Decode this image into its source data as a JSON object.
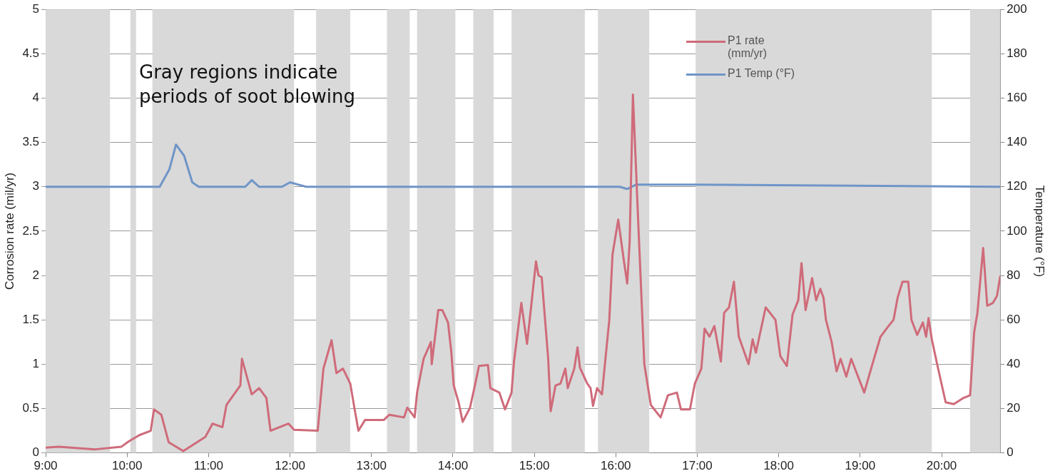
{
  "chart_data": {
    "type": "line",
    "xlim": [
      9,
      20.72
    ],
    "xticks": [
      {
        "value": 9,
        "label": "9:00"
      },
      {
        "value": 10,
        "label": "10:00"
      },
      {
        "value": 11,
        "label": "11:00"
      },
      {
        "value": 12,
        "label": "12:00"
      },
      {
        "value": 13,
        "label": "13:00"
      },
      {
        "value": 14,
        "label": "14:00"
      },
      {
        "value": 15,
        "label": "15:00"
      },
      {
        "value": 16,
        "label": "16:00"
      },
      {
        "value": 17,
        "label": "17:00"
      },
      {
        "value": 18,
        "label": "18:00"
      },
      {
        "value": 19,
        "label": "19:00"
      },
      {
        "value": 20,
        "label": "20:00"
      }
    ],
    "ylim": [
      0,
      5
    ],
    "yticks": [
      0,
      0.5,
      1,
      1.5,
      2,
      2.5,
      3,
      3.5,
      4,
      4.5,
      5
    ],
    "y2lim": [
      0,
      200
    ],
    "y2ticks": [
      0,
      20,
      40,
      60,
      80,
      100,
      120,
      140,
      160,
      180,
      200
    ],
    "ylabel": "Corrosion rate (mil/yr)",
    "y2label": "Temperature (°F)",
    "grid": "y",
    "legend": "top right",
    "marker": "none",
    "line_style": "solid",
    "annotations": [
      "Gray regions indicate periods of soot blowing"
    ],
    "bands": [
      {
        "axis": "x",
        "from": 9.0,
        "to": 9.79,
        "color": "#d9d9d9"
      },
      {
        "axis": "x",
        "from": 10.04,
        "to": 10.11,
        "color": "#d9d9d9"
      },
      {
        "axis": "x",
        "from": 10.31,
        "to": 12.05,
        "color": "#d9d9d9"
      },
      {
        "axis": "x",
        "from": 12.32,
        "to": 12.74,
        "color": "#d9d9d9"
      },
      {
        "axis": "x",
        "from": 13.19,
        "to": 13.47,
        "color": "#d9d9d9"
      },
      {
        "axis": "x",
        "from": 13.56,
        "to": 14.03,
        "color": "#d9d9d9"
      },
      {
        "axis": "x",
        "from": 14.25,
        "to": 14.5,
        "color": "#d9d9d9"
      },
      {
        "axis": "x",
        "from": 14.72,
        "to": 15.62,
        "color": "#d9d9d9"
      },
      {
        "axis": "x",
        "from": 15.78,
        "to": 16.41,
        "color": "#d9d9d9"
      },
      {
        "axis": "x",
        "from": 16.98,
        "to": 19.88,
        "color": "#d9d9d9"
      },
      {
        "axis": "x",
        "from": 20.35,
        "to": 20.72,
        "color": "#d9d9d9"
      }
    ],
    "series": [
      {
        "name": "P1 rate (mm/yr)",
        "color": "#cf6b7a",
        "x": [
          9.0,
          9.16,
          9.61,
          9.93,
          10.02,
          10.15,
          10.29,
          10.33,
          10.42,
          10.51,
          10.69,
          10.96,
          11.05,
          11.17,
          11.22,
          11.39,
          11.41,
          11.53,
          11.62,
          11.71,
          11.76,
          11.98,
          12.05,
          12.34,
          12.41,
          12.51,
          12.57,
          12.65,
          12.74,
          12.79,
          12.84,
          12.92,
          13.15,
          13.22,
          13.4,
          13.44,
          13.53,
          13.56,
          13.64,
          13.73,
          13.74,
          13.82,
          13.87,
          13.94,
          13.98,
          14.01,
          14.07,
          14.12,
          14.21,
          14.27,
          14.32,
          14.43,
          14.46,
          14.57,
          14.64,
          14.72,
          14.75,
          14.84,
          14.86,
          14.91,
          14.95,
          15.02,
          15.05,
          15.09,
          15.17,
          15.2,
          15.26,
          15.32,
          15.38,
          15.41,
          15.49,
          15.53,
          15.56,
          15.65,
          15.69,
          15.72,
          15.77,
          15.83,
          15.92,
          15.96,
          16.03,
          16.1,
          16.14,
          16.17,
          16.21,
          16.28,
          16.35,
          16.43,
          16.55,
          16.64,
          16.75,
          16.8,
          16.91,
          16.97,
          17.05,
          17.09,
          17.15,
          17.21,
          17.29,
          17.33,
          17.39,
          17.45,
          17.51,
          17.63,
          17.68,
          17.72,
          17.84,
          17.96,
          18.02,
          18.1,
          18.17,
          18.24,
          18.28,
          18.33,
          18.41,
          18.46,
          18.51,
          18.55,
          18.58,
          18.65,
          18.71,
          18.76,
          18.83,
          18.89,
          19.05,
          19.16,
          19.25,
          19.34,
          19.41,
          19.46,
          19.52,
          19.59,
          19.63,
          19.7,
          19.77,
          19.81,
          19.84,
          19.88,
          19.95,
          20.05,
          20.15,
          20.27,
          20.35,
          20.4,
          20.44,
          20.51,
          20.56,
          20.63,
          20.68,
          20.72
        ],
        "values": [
          0.06,
          0.07,
          0.04,
          0.07,
          0.13,
          0.2,
          0.25,
          0.49,
          0.43,
          0.12,
          0.02,
          0.18,
          0.33,
          0.29,
          0.54,
          0.76,
          1.06,
          0.66,
          0.73,
          0.62,
          0.25,
          0.33,
          0.26,
          0.25,
          0.95,
          1.27,
          0.9,
          0.95,
          0.78,
          0.51,
          0.25,
          0.37,
          0.37,
          0.43,
          0.4,
          0.51,
          0.4,
          0.68,
          1.06,
          1.25,
          1.0,
          1.61,
          1.61,
          1.47,
          1.14,
          0.76,
          0.57,
          0.35,
          0.51,
          0.76,
          0.98,
          0.99,
          0.73,
          0.68,
          0.49,
          0.68,
          1.03,
          1.69,
          1.56,
          1.23,
          1.56,
          2.16,
          2.0,
          1.98,
          1.06,
          0.47,
          0.76,
          0.78,
          0.95,
          0.73,
          0.95,
          1.19,
          0.96,
          0.78,
          0.73,
          0.53,
          0.73,
          0.66,
          1.5,
          2.24,
          2.63,
          2.16,
          1.91,
          2.38,
          4.04,
          2.5,
          1.0,
          0.54,
          0.4,
          0.65,
          0.68,
          0.49,
          0.49,
          0.78,
          0.95,
          1.4,
          1.31,
          1.43,
          1.03,
          1.58,
          1.64,
          1.93,
          1.31,
          1.0,
          1.28,
          1.13,
          1.64,
          1.5,
          1.09,
          0.98,
          1.56,
          1.72,
          2.14,
          1.61,
          1.97,
          1.72,
          1.85,
          1.75,
          1.5,
          1.25,
          0.92,
          1.06,
          0.86,
          1.06,
          0.68,
          1.03,
          1.31,
          1.42,
          1.5,
          1.75,
          1.93,
          1.93,
          1.5,
          1.33,
          1.47,
          1.31,
          1.52,
          1.28,
          0.98,
          0.57,
          0.55,
          0.62,
          0.65,
          1.36,
          1.58,
          2.31,
          1.66,
          1.69,
          1.77,
          1.99
        ]
      },
      {
        "name": "P1 Temp (°F)",
        "color": "#6f95c8",
        "axis": "y2",
        "x": [
          9.0,
          10.4,
          10.52,
          10.6,
          10.7,
          10.8,
          10.88,
          11.45,
          11.53,
          11.62,
          11.9,
          12.0,
          12.1,
          12.2,
          16.05,
          16.14,
          16.25,
          17.0,
          20.72
        ],
        "values": [
          120,
          120,
          128,
          139,
          134,
          122,
          120,
          120,
          123,
          120,
          120,
          122,
          121,
          120,
          120,
          119,
          121,
          121,
          120
        ]
      }
    ]
  }
}
